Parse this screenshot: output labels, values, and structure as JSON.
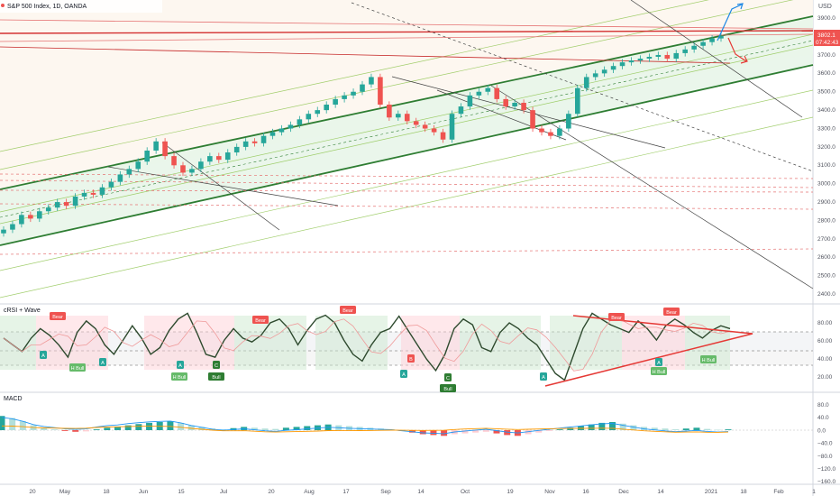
{
  "header": {
    "symbol_title": "S&P 500 Index, 1D, OANDA",
    "currency": "USD"
  },
  "price_axis": {
    "ticks": [
      "3900.0",
      "3800.0",
      "3700.0",
      "3600.0",
      "3500.0",
      "3400.0",
      "3300.0",
      "3200.0",
      "3100.0",
      "3000.0",
      "2900.0",
      "2800.0",
      "2700.0",
      "2600.0",
      "2500.0",
      "2400.0"
    ],
    "last_price": "3802.1",
    "countdown": "07:42:43"
  },
  "crsi_pane": {
    "title": "cRSI + Wave",
    "ticks": [
      "80.00",
      "60.00",
      "40.00",
      "20.00"
    ],
    "labels": {
      "bear": "Bear",
      "bull": "Bull",
      "hbull": "H Bull",
      "a": "A",
      "b": "B",
      "c": "C"
    }
  },
  "macd_pane": {
    "title": "MACD",
    "ticks": [
      "80.0",
      "40.0",
      "0.0",
      "−40.0",
      "−80.0",
      "−120.0",
      "−160.0"
    ]
  },
  "time_axis": {
    "ticks": [
      "20",
      "May",
      "18",
      "Jun",
      "15",
      "Jul",
      "20",
      "Aug",
      "17",
      "Sep",
      "14",
      "Oct",
      "19",
      "Nov",
      "16",
      "Dec",
      "14",
      "2021",
      "18",
      "Feb",
      "1"
    ]
  },
  "colors": {
    "up": "#26a69a",
    "down": "#ef5350",
    "channel": "#2e7d32",
    "channel_fill": "#e8f5e9",
    "red_line": "#d32f2f",
    "blue_arrow": "#1e88e5",
    "crsi_line": "#2e4a2e",
    "macd_line": "#2196f3",
    "signal_line": "#ff9800"
  },
  "chart_data": {
    "type": "candlestick",
    "title": "S&P 500 Index, 1D, OANDA",
    "ylim": [
      2400,
      3950
    ],
    "x_labels": [
      "20",
      "May",
      "18",
      "Jun",
      "15",
      "Jul",
      "20",
      "Aug",
      "17",
      "Sep",
      "14",
      "Oct",
      "19",
      "Nov",
      "16",
      "Dec",
      "14",
      "2021",
      "18",
      "Feb",
      "1"
    ],
    "close_path": [
      2750,
      2780,
      2830,
      2810,
      2850,
      2870,
      2900,
      2880,
      2930,
      2950,
      2940,
      2980,
      3010,
      3050,
      3080,
      3120,
      3180,
      3230,
      3150,
      3100,
      3060,
      3080,
      3120,
      3150,
      3130,
      3170,
      3200,
      3230,
      3220,
      3260,
      3280,
      3300,
      3320,
      3350,
      3380,
      3400,
      3430,
      3460,
      3480,
      3500,
      3540,
      3580,
      3430,
      3360,
      3380,
      3340,
      3320,
      3300,
      3280,
      3240,
      3380,
      3420,
      3480,
      3500,
      3520,
      3460,
      3420,
      3440,
      3400,
      3300,
      3280,
      3260,
      3300,
      3380,
      3520,
      3580,
      3600,
      3620,
      3640,
      3660,
      3670,
      3680,
      3690,
      3700,
      3680,
      3710,
      3730,
      3750,
      3770,
      3790,
      3802
    ],
    "crsi_path": [
      62,
      55,
      48,
      62,
      72,
      65,
      55,
      42,
      68,
      80,
      72,
      55,
      45,
      60,
      75,
      62,
      45,
      52,
      70,
      82,
      88,
      68,
      45,
      42,
      60,
      72,
      62,
      58,
      65,
      78,
      82,
      72,
      55,
      70,
      82,
      86,
      78,
      60,
      45,
      38,
      55,
      68,
      72,
      85,
      70,
      55,
      40,
      28,
      45,
      72,
      82,
      76,
      52,
      48,
      68,
      78,
      72,
      62,
      55,
      40,
      25,
      18,
      45,
      72,
      88,
      82,
      76,
      72,
      68,
      80,
      72,
      60,
      75,
      82,
      76,
      68,
      62,
      70,
      75,
      72
    ],
    "macd_hist_path": [
      35,
      30,
      22,
      12,
      6,
      2,
      -2,
      -4,
      -3,
      2,
      6,
      8,
      12,
      15,
      18,
      20,
      22,
      18,
      12,
      8,
      4,
      2,
      5,
      8,
      6,
      4,
      3,
      6,
      8,
      10,
      12,
      14,
      12,
      10,
      8,
      6,
      4,
      2,
      -2,
      -6,
      -10,
      -12,
      -14,
      -10,
      -8,
      -6,
      -4,
      -8,
      -12,
      -14,
      -10,
      -6,
      -2,
      2,
      6,
      10,
      14,
      18,
      20,
      16,
      12,
      8,
      6,
      4,
      2,
      4,
      6,
      3,
      1,
      2
    ]
  }
}
